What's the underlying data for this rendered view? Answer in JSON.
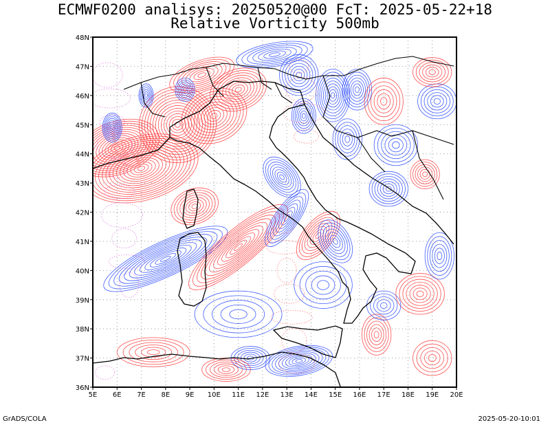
{
  "header": {
    "line1": "ECMWF0200 analisys: 20250520@00 FcT: 2025-05-22+18",
    "line2": "Relative Vorticity 500mb"
  },
  "footer": {
    "left": "GrADS/COLA",
    "right": "2025-05-20-10:01"
  },
  "map": {
    "lon_range": [
      5,
      20
    ],
    "lat_range": [
      36,
      48
    ],
    "x_ticks": [
      "5E",
      "6E",
      "7E",
      "8E",
      "9E",
      "10E",
      "11E",
      "12E",
      "13E",
      "14E",
      "15E",
      "16E",
      "17E",
      "18E",
      "19E",
      "20E"
    ],
    "y_ticks": [
      "36N",
      "37N",
      "38N",
      "39N",
      "40N",
      "41N",
      "42N",
      "43N",
      "44N",
      "45N",
      "46N",
      "47N",
      "48N"
    ],
    "grid": "dotted",
    "colors": {
      "positive": "#ff3b3b",
      "negative": "#2b4bff",
      "coast": "#000000",
      "grid": "#999999"
    }
  }
}
